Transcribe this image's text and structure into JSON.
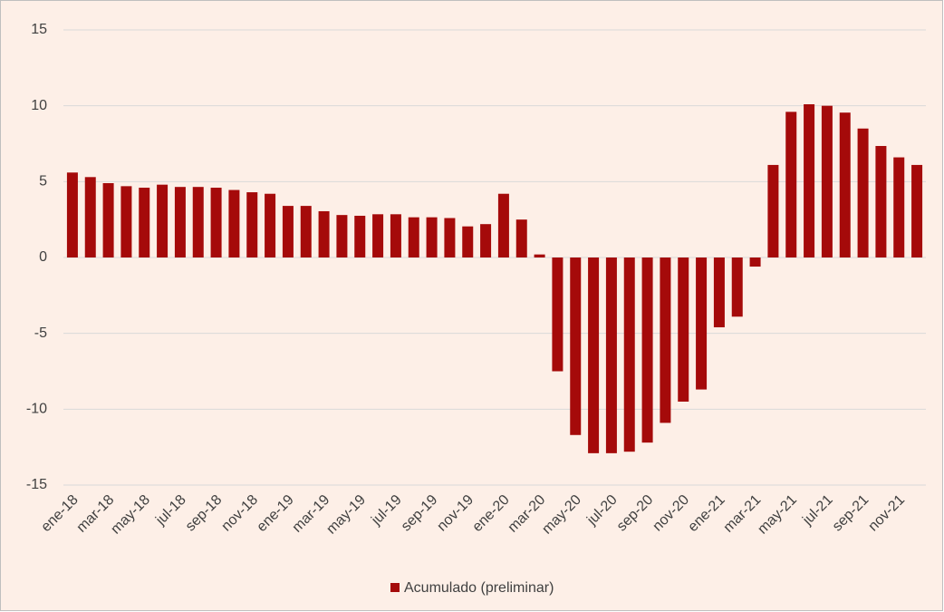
{
  "chart_data": {
    "type": "bar",
    "categories": [
      "ene-18",
      null,
      "mar-18",
      null,
      "may-18",
      null,
      "jul-18",
      null,
      "sep-18",
      null,
      "nov-18",
      null,
      "ene-19",
      null,
      "mar-19",
      null,
      "may-19",
      null,
      "jul-19",
      null,
      "sep-19",
      null,
      "nov-19",
      null,
      "ene-20",
      null,
      "mar-20",
      null,
      "may-20",
      null,
      "jul-20",
      null,
      "sep-20",
      null,
      "nov-20",
      null,
      "ene-21",
      null,
      "mar-21",
      null,
      "may-21",
      null,
      "jul-21",
      null,
      "sep-21",
      null,
      "nov-21",
      null
    ],
    "series": [
      {
        "name": "Acumulado (preliminar)",
        "color": "#a50a0a",
        "values": [
          5.6,
          5.3,
          4.9,
          4.7,
          4.6,
          4.8,
          4.65,
          4.65,
          4.6,
          4.45,
          4.3,
          4.2,
          3.4,
          3.4,
          3.05,
          2.8,
          2.75,
          2.85,
          2.85,
          2.65,
          2.65,
          2.6,
          2.05,
          2.2,
          4.2,
          2.5,
          0.2,
          -7.5,
          -11.7,
          -12.9,
          -12.9,
          -12.8,
          -12.2,
          -10.9,
          -9.5,
          -8.7,
          -4.6,
          -3.9,
          -0.6,
          6.1,
          9.6,
          10.1,
          10.0,
          9.55,
          8.5,
          7.35,
          6.6,
          6.1
        ]
      }
    ],
    "ylim": [
      -15,
      15
    ],
    "yticks": [
      -15,
      -10,
      -5,
      0,
      5,
      10,
      15
    ],
    "grid": true,
    "legend": "bottom"
  }
}
